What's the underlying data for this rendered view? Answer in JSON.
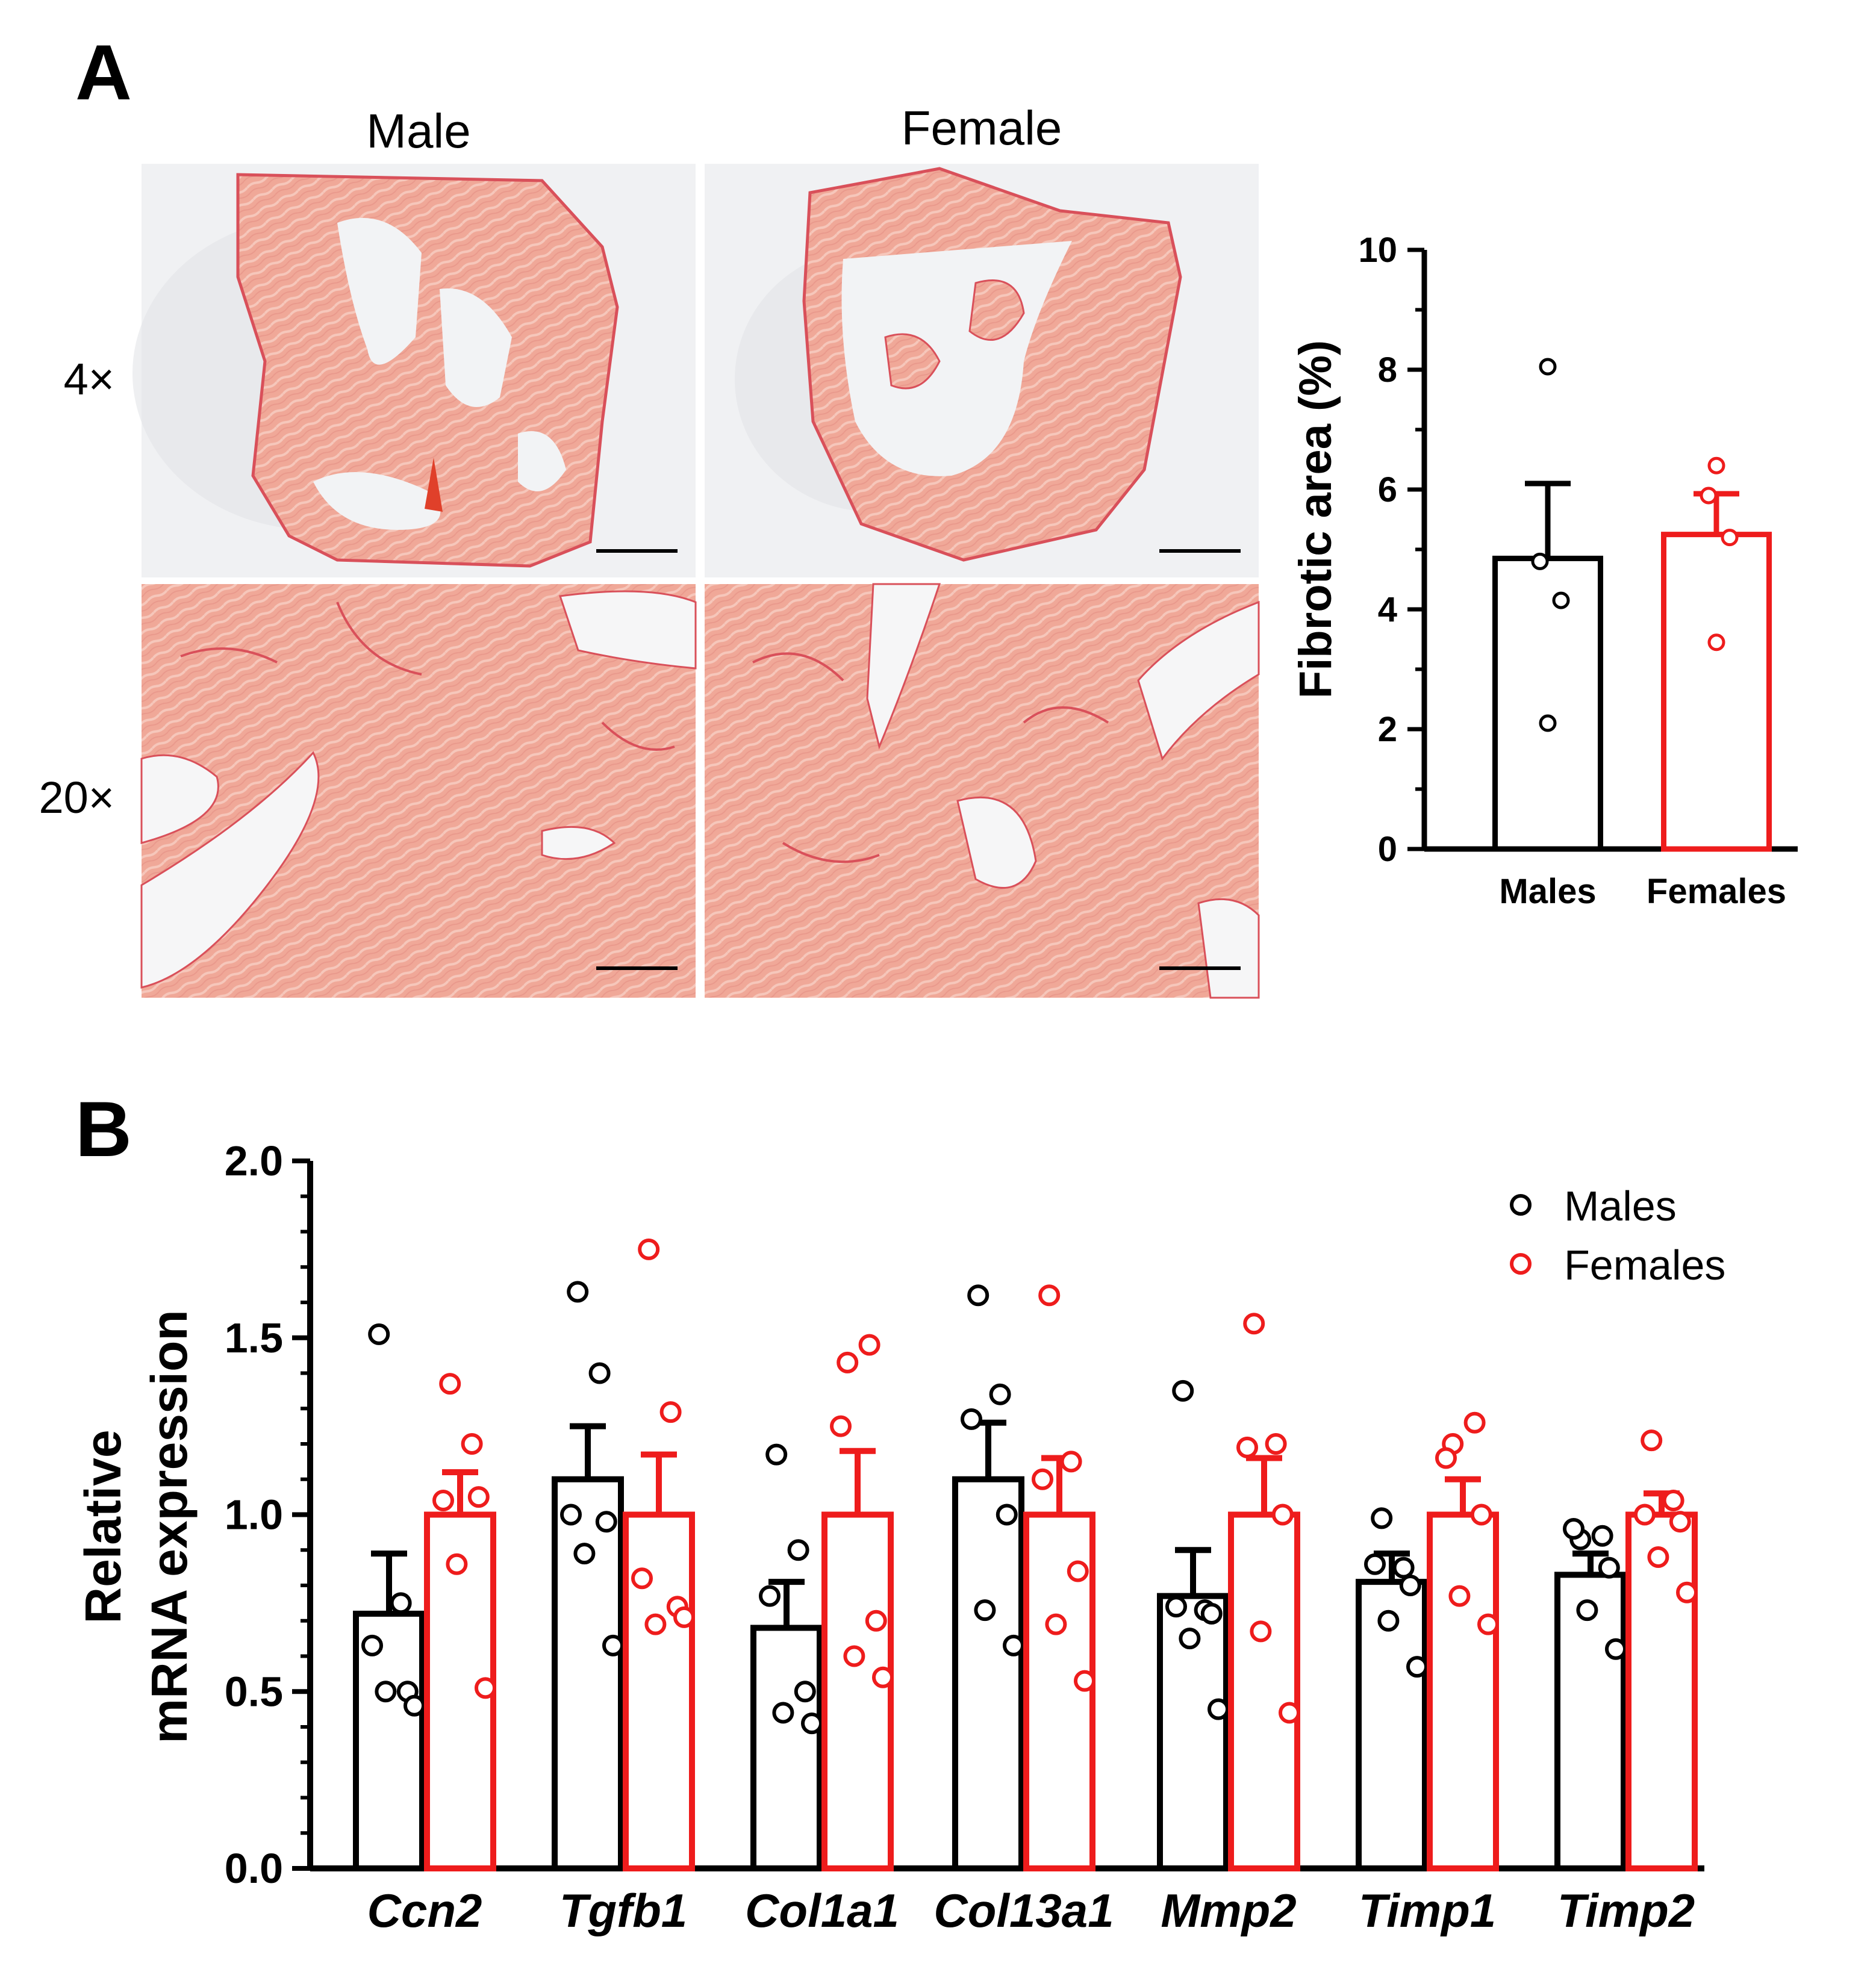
{
  "panels": {
    "a_label": "A",
    "b_label": "B"
  },
  "histology": {
    "columns": [
      "Male",
      "Female"
    ],
    "rows": [
      "4×",
      "20×"
    ],
    "tissue_color": "#f0a898",
    "tissue_edge": "#d9505a",
    "background_color": "#f2f3f5"
  },
  "colors": {
    "males": "#000000",
    "females": "#ee1c1c"
  },
  "chart_data": [
    {
      "type": "bar",
      "panel": "A",
      "title": "",
      "xlabel": "",
      "ylabel": "Fibrotic area (%)",
      "ylim": [
        0,
        10
      ],
      "yticks": [
        0,
        2,
        4,
        6,
        8,
        10
      ],
      "categories": [
        "Males",
        "Females"
      ],
      "values": [
        4.85,
        5.25
      ],
      "errors": [
        1.25,
        0.68
      ],
      "points": [
        [
          8.05,
          4.8,
          4.15,
          2.1
        ],
        [
          6.4,
          5.9,
          5.2,
          3.45
        ]
      ]
    },
    {
      "type": "bar",
      "panel": "B",
      "title": "",
      "xlabel": "",
      "ylabel": [
        "Relative",
        "mRNA expression"
      ],
      "ylim": [
        0,
        2
      ],
      "yticks": [
        "0.0",
        "0.5",
        "1.0",
        "1.5",
        "2.0"
      ],
      "categories": [
        "Ccn2",
        "Tgfb1",
        "Col1a1",
        "Col13a1",
        "Mmp2",
        "Timp1",
        "Timp2"
      ],
      "legend": {
        "position": "top-right",
        "entries": [
          "Males",
          "Females"
        ]
      },
      "series": [
        {
          "name": "Males",
          "values": [
            0.72,
            1.1,
            0.68,
            1.1,
            0.77,
            0.81,
            0.83
          ],
          "errors": [
            0.17,
            0.15,
            0.13,
            0.16,
            0.13,
            0.08,
            0.06
          ],
          "points": [
            [
              1.51,
              0.75,
              0.63,
              0.5,
              0.5,
              0.46
            ],
            [
              1.63,
              1.4,
              1.0,
              0.98,
              0.89,
              0.63
            ],
            [
              1.17,
              0.9,
              0.77,
              0.5,
              0.44,
              0.41
            ],
            [
              1.62,
              1.34,
              1.27,
              1.0,
              0.73,
              0.63
            ],
            [
              1.35,
              0.73,
              0.74,
              0.72,
              0.65,
              0.45
            ],
            [
              0.99,
              0.85,
              0.86,
              0.8,
              0.7,
              0.57
            ],
            [
              0.93,
              0.94,
              0.96,
              0.85,
              0.73,
              0.62
            ]
          ]
        },
        {
          "name": "Females",
          "values": [
            1.0,
            1.0,
            1.0,
            1.0,
            1.0,
            1.0,
            1.0
          ],
          "errors": [
            0.12,
            0.17,
            0.18,
            0.16,
            0.16,
            0.1,
            0.06
          ],
          "points": [
            [
              1.37,
              1.2,
              1.04,
              1.05,
              0.86,
              0.51
            ],
            [
              1.75,
              1.29,
              0.82,
              0.74,
              0.69,
              0.71
            ],
            [
              1.43,
              1.48,
              1.25,
              0.7,
              0.6,
              0.54
            ],
            [
              1.62,
              1.15,
              1.1,
              0.84,
              0.69,
              0.53
            ],
            [
              1.54,
              1.2,
              1.19,
              1.0,
              0.67,
              0.44
            ],
            [
              1.2,
              1.26,
              1.16,
              1.0,
              0.77,
              0.69
            ],
            [
              1.21,
              1.04,
              1.0,
              0.98,
              0.88,
              0.78
            ]
          ]
        }
      ]
    }
  ]
}
